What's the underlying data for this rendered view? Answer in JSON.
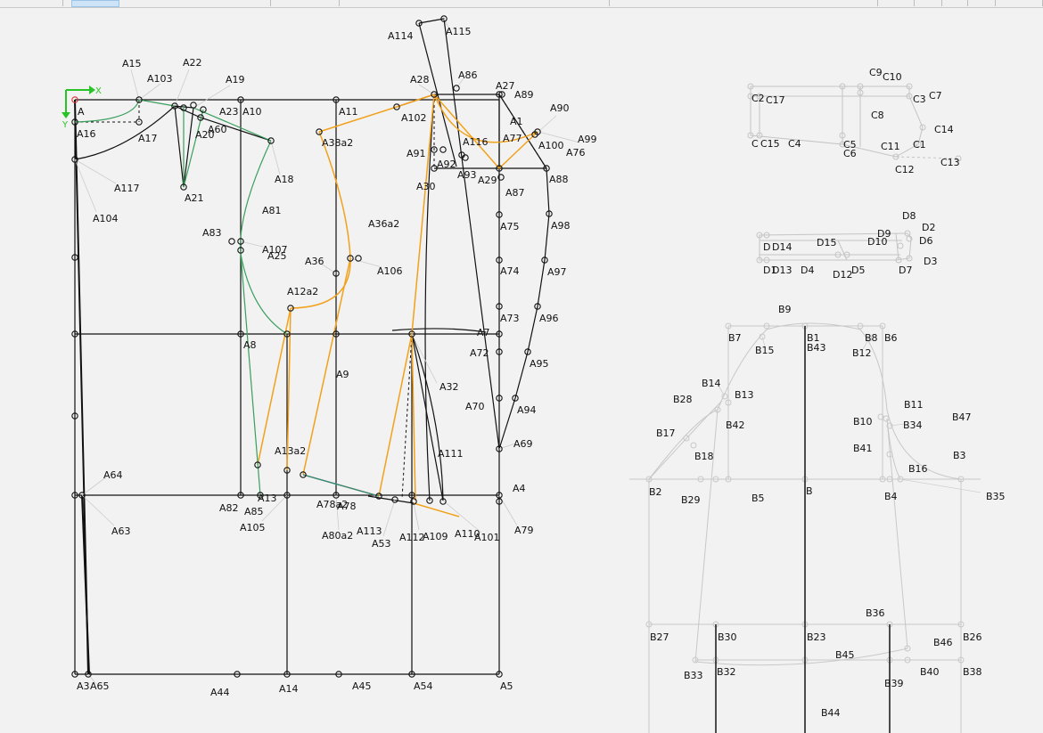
{
  "window": {
    "toolbar_state": "partially visible tool strip"
  },
  "origin": {
    "x_label": "X",
    "y_label": "Y",
    "color": "#27c427"
  },
  "colors": {
    "black": "#111111",
    "orange": "#f2a11a",
    "green": "#3a9e5c",
    "gray": "#c8c8c8",
    "teal": "#2a8a8a"
  },
  "pattern_main": {
    "labels": [
      "A",
      "A1",
      "A3",
      "A4",
      "A5",
      "A7",
      "A8",
      "A9",
      "A10",
      "A11",
      "A12a2",
      "A13",
      "A13a2",
      "A14",
      "A15",
      "A16",
      "A17",
      "A18",
      "A19",
      "A20",
      "A21",
      "A22",
      "A23",
      "A25",
      "A27",
      "A28",
      "A29",
      "A30",
      "A32",
      "A36",
      "A36a2",
      "A38a2",
      "A44",
      "A45",
      "A53",
      "A54",
      "A60",
      "A63",
      "A64",
      "A65",
      "A69",
      "A70",
      "A72",
      "A73",
      "A74",
      "A75",
      "A76",
      "A77",
      "A78",
      "A78a2",
      "A79",
      "A80a2",
      "A81",
      "A82",
      "A83",
      "A85",
      "A86",
      "A87",
      "A88",
      "A89",
      "A90",
      "A91",
      "A92",
      "A93",
      "A94",
      "A95",
      "A96",
      "A97",
      "A98",
      "A99",
      "A100",
      "A101",
      "A102",
      "A103",
      "A104",
      "A105",
      "A106",
      "A107",
      "A109",
      "A110",
      "A111",
      "A112",
      "A113",
      "A114",
      "A115",
      "A116",
      "A117"
    ]
  },
  "pattern_sleeve": {
    "labels": [
      "B",
      "B1",
      "B2",
      "B3",
      "B4",
      "B5",
      "B6",
      "B7",
      "B8",
      "B9",
      "B10",
      "B11",
      "B12",
      "B13",
      "B14",
      "B15",
      "B16",
      "B17",
      "B18",
      "B23",
      "B26",
      "B27",
      "B28",
      "B29",
      "B30",
      "B32",
      "B33",
      "B34",
      "B35",
      "B36",
      "B38",
      "B39",
      "B40",
      "B41",
      "B42",
      "B43",
      "B44",
      "B45",
      "B46",
      "B47"
    ]
  },
  "pattern_collar": {
    "labels": [
      "C",
      "C1",
      "C2",
      "C3",
      "C4",
      "C5",
      "C6",
      "C7",
      "C8",
      "C9",
      "C10",
      "C11",
      "C12",
      "C13",
      "C14",
      "C15",
      "C17"
    ]
  },
  "pattern_band": {
    "labels": [
      "D",
      "D1",
      "D2",
      "D3",
      "D4",
      "D5",
      "D6",
      "D7",
      "D8",
      "D9",
      "D10",
      "D12",
      "D13",
      "D14",
      "D15"
    ]
  }
}
